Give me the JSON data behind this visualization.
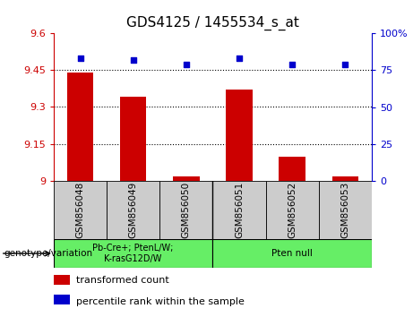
{
  "title": "GDS4125 / 1455534_s_at",
  "samples": [
    "GSM856048",
    "GSM856049",
    "GSM856050",
    "GSM856051",
    "GSM856052",
    "GSM856053"
  ],
  "bar_values": [
    9.44,
    9.34,
    9.02,
    9.37,
    9.1,
    9.02
  ],
  "percentile_values": [
    83,
    82,
    79,
    83,
    79,
    79
  ],
  "ylim_left": [
    9.0,
    9.6
  ],
  "ylim_right": [
    0,
    100
  ],
  "yticks_left": [
    9.0,
    9.15,
    9.3,
    9.45,
    9.6
  ],
  "ytick_labels_left": [
    "9",
    "9.15",
    "9.3",
    "9.45",
    "9.6"
  ],
  "yticks_right": [
    0,
    25,
    50,
    75,
    100
  ],
  "ytick_labels_right": [
    "0",
    "25",
    "50",
    "75",
    "100%"
  ],
  "hlines": [
    9.15,
    9.3,
    9.45
  ],
  "bar_color": "#cc0000",
  "square_color": "#0000cc",
  "bar_width": 0.5,
  "group1_label": "Pb-Cre+; PtenL/W;\nK-rasG12D/W",
  "group2_label": "Pten null",
  "genotype_label": "genotype/variation",
  "group_bg_color": "#66ee66",
  "sample_bg_color": "#cccccc",
  "legend_bar_label": "transformed count",
  "legend_square_label": "percentile rank within the sample",
  "figure_width": 4.61,
  "figure_height": 3.54,
  "dpi": 100
}
